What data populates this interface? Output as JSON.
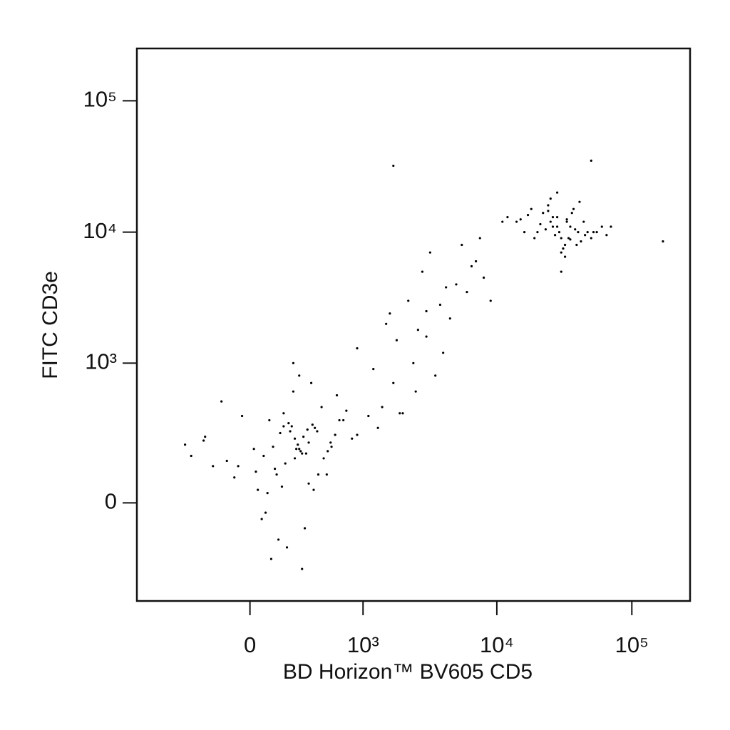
{
  "chart_data": {
    "type": "scatter",
    "x_label": "BD Horizon™ BV605 CD5",
    "y_label": "FITC CD3e",
    "xscale": "biexponential",
    "yscale": "biexponential",
    "color": "#000000",
    "xlim": [
      -1000,
      270000
    ],
    "ylim": [
      -470,
      250000
    ],
    "xticks": [
      0,
      {
        "value": 1000,
        "label": "10³"
      },
      {
        "value": 10000,
        "label": "10⁴"
      },
      {
        "value": 100000,
        "label": "10⁵"
      }
    ],
    "yticks": [
      0,
      {
        "value": 1000,
        "label": "10³"
      },
      {
        "value": 10000,
        "label": "10⁴"
      },
      {
        "value": 100000,
        "label": "10⁵"
      }
    ],
    "x": [
      120,
      250,
      -80,
      400,
      310,
      60,
      520,
      180,
      -200,
      700,
      350,
      90,
      220,
      -350,
      460,
      150,
      280,
      600,
      30,
      380,
      -120,
      240,
      820,
      170,
      330,
      -40,
      510,
      270,
      110,
      420,
      -260,
      190,
      650,
      350,
      80,
      230,
      560,
      300,
      -150,
      140,
      900,
      260,
      40,
      370,
      480,
      210,
      -60,
      320,
      160,
      740,
      290,
      100,
      -400,
      430,
      250,
      620,
      200,
      70,
      340,
      1100,
      130,
      -250,
      390,
      280,
      550,
      180,
      20,
      300,
      1400,
      240,
      1200,
      1800,
      2500,
      3000,
      2200,
      4000,
      1500,
      5000,
      3500,
      2800,
      6000,
      1900,
      4500,
      7000,
      2600,
      3200,
      8000,
      1300,
      5500,
      2400,
      3800,
      900,
      6500,
      1700,
      4200,
      2000,
      7500,
      3000,
      1600,
      9000,
      20000,
      25000,
      30000,
      35000,
      28000,
      18000,
      40000,
      32000,
      22000,
      45000,
      26000,
      15000,
      38000,
      30000,
      50000,
      24000,
      33000,
      12000,
      42000,
      29000,
      27000,
      21000,
      36000,
      55000,
      31000,
      17000,
      44000,
      25000,
      34000,
      60000,
      23000,
      39000,
      28000,
      14000,
      47000,
      32000,
      26000,
      70000,
      19000,
      37000,
      30000,
      24000,
      52000,
      11000,
      35000,
      28000,
      41000,
      16000,
      65000,
      33000,
      170000,
      50000,
      1700
    ],
    "values": [
      200,
      150,
      80,
      300,
      250,
      -50,
      180,
      400,
      120,
      350,
      220,
      30,
      280,
      160,
      450,
      -120,
      190,
      260,
      100,
      320,
      140,
      600,
      240,
      50,
      170,
      380,
      90,
      210,
      -200,
      280,
      230,
      130,
      350,
      60,
      -30,
      310,
      200,
      170,
      500,
      90,
      260,
      190,
      40,
      700,
      150,
      330,
      120,
      -80,
      270,
      420,
      180,
      350,
      210,
      90,
      240,
      560,
      -150,
      160,
      290,
      380,
      110,
      250,
      40,
      800,
      220,
      310,
      190,
      -250,
      450,
      1000,
      900,
      1500,
      600,
      2500,
      3000,
      1200,
      2000,
      4000,
      800,
      5000,
      3500,
      400,
      2200,
      6000,
      1800,
      7000,
      4500,
      300,
      8000,
      1000,
      2800,
      1300,
      5500,
      700,
      3800,
      400,
      9000,
      1600,
      2400,
      3000,
      10000,
      12000,
      9000,
      11000,
      13000,
      15000,
      10000,
      8000,
      14000,
      9500,
      11000,
      12500,
      10500,
      7000,
      9000,
      16000,
      12000,
      13000,
      8500,
      10000,
      9500,
      11500,
      14000,
      10000,
      7500,
      13500,
      12000,
      18000,
      9000,
      11000,
      10500,
      8000,
      20000,
      12000,
      10000,
      6500,
      13000,
      11000,
      9000,
      15000,
      5000,
      14500,
      10000,
      12000,
      8800,
      11000,
      17000,
      10000,
      9500,
      12500,
      8500,
      35000,
      32000
    ]
  }
}
